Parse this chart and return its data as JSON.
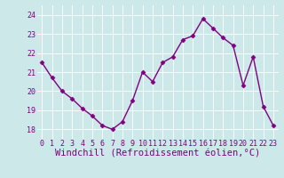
{
  "x": [
    0,
    1,
    2,
    3,
    4,
    5,
    6,
    7,
    8,
    9,
    10,
    11,
    12,
    13,
    14,
    15,
    16,
    17,
    18,
    19,
    20,
    21,
    22,
    23
  ],
  "y": [
    21.5,
    20.7,
    20.0,
    19.6,
    19.1,
    18.7,
    18.2,
    18.0,
    18.4,
    19.5,
    21.0,
    20.5,
    21.5,
    21.8,
    22.7,
    22.9,
    23.8,
    23.3,
    22.8,
    22.4,
    20.3,
    21.8,
    19.2,
    18.2
  ],
  "line_color": "#800080",
  "marker": "D",
  "markersize": 2.5,
  "linewidth": 1.0,
  "bg_color": "#cce8e8",
  "grid_color": "#ffffff",
  "xlabel": "Windchill (Refroidissement éolien,°C)",
  "xlabel_fontsize": 7.5,
  "xlabel_color": "#800080",
  "tick_color": "#800080",
  "ylim": [
    17.5,
    24.5
  ],
  "yticks": [
    18,
    19,
    20,
    21,
    22,
    23,
    24
  ],
  "xticks": [
    0,
    1,
    2,
    3,
    4,
    5,
    6,
    7,
    8,
    9,
    10,
    11,
    12,
    13,
    14,
    15,
    16,
    17,
    18,
    19,
    20,
    21,
    22,
    23
  ],
  "tick_fontsize": 6.0,
  "grid_linewidth": 0.6
}
